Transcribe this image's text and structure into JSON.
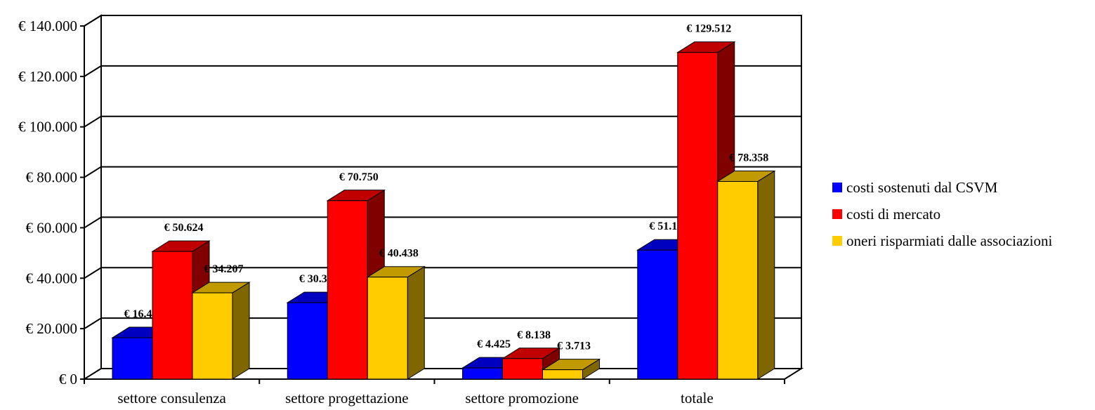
{
  "chart_data": {
    "type": "bar",
    "categories": [
      "settore consulenza",
      "settore progettazione",
      "settore promozione",
      "totale"
    ],
    "series": [
      {
        "name": "costi sostenuti dal CSVM",
        "values": [
          16417,
          30312,
          4425,
          51154
        ],
        "labels": [
          "€ 16.417",
          "€ 30.312",
          "€ 4.425",
          "€ 51.154"
        ],
        "color": "#0000FF",
        "side_color": "#000080",
        "top_color": "#0000C0"
      },
      {
        "name": "costi di mercato",
        "values": [
          50624,
          70750,
          8138,
          129512
        ],
        "labels": [
          "€ 50.624",
          "€ 70.750",
          "€ 8.138",
          "€ 129.512"
        ],
        "color": "#FF0000",
        "side_color": "#800000",
        "top_color": "#C00000"
      },
      {
        "name": "oneri risparmiati dalle associazioni",
        "values": [
          34207,
          40438,
          3713,
          78358
        ],
        "labels": [
          "€ 34.207",
          "€ 40.438",
          "€ 3.713",
          "€ 78.358"
        ],
        "color": "#FFCC00",
        "side_color": "#806600",
        "top_color": "#C09A00"
      }
    ],
    "y_ticks": [
      {
        "value": 0,
        "label": "€ 0"
      },
      {
        "value": 20000,
        "label": "€ 20.000"
      },
      {
        "value": 40000,
        "label": "€ 40.000"
      },
      {
        "value": 60000,
        "label": "€ 60.000"
      },
      {
        "value": 80000,
        "label": "€ 80.000"
      },
      {
        "value": 100000,
        "label": "€ 100.000"
      },
      {
        "value": 120000,
        "label": "€ 120.000"
      },
      {
        "value": 140000,
        "label": "€ 140.000"
      }
    ],
    "ylim": [
      0,
      140000
    ],
    "grid": true,
    "legend_position": "right",
    "title": "",
    "xlabel": "",
    "ylabel": ""
  }
}
